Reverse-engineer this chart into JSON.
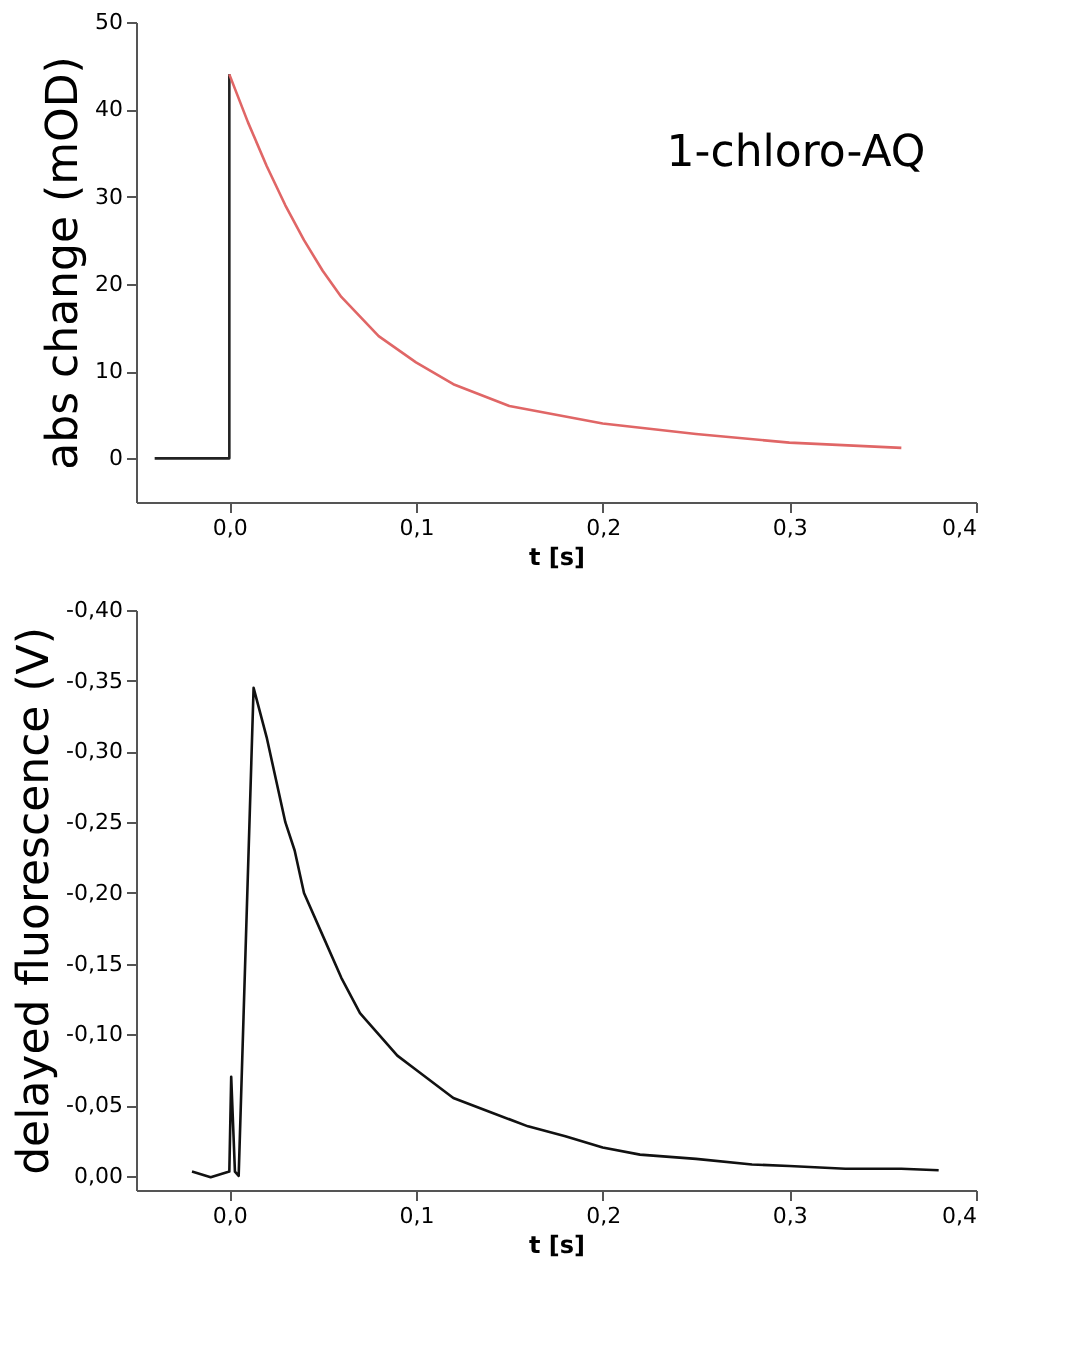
{
  "chart_data": [
    {
      "type": "line",
      "xlabel": "t [s]",
      "ylabel": "abs change (mOD)",
      "annotations": [
        "1-chloro-AQ"
      ],
      "xlim": [
        -0.05,
        0.4
      ],
      "xticks": [
        {
          "value": 0,
          "label": "0,0"
        },
        {
          "value": 0.1,
          "label": "0,1"
        },
        {
          "value": 0.2,
          "label": "0,2"
        },
        {
          "value": 0.3,
          "label": "0,3"
        },
        {
          "value": 0.4,
          "label": "0,4"
        }
      ],
      "ylim": [
        -5,
        50
      ],
      "yticks": [
        0,
        10,
        20,
        30,
        40,
        50
      ],
      "grid": false,
      "series": [
        {
          "color": "#222222",
          "x": [
            -0.04,
            -0.02,
            0,
            0
          ],
          "values": [
            0,
            0,
            0,
            44
          ]
        },
        {
          "color": "#e06666",
          "x": [
            0,
            0.01,
            0.02,
            0.03,
            0.04,
            0.05,
            0.06,
            0.08,
            0.1,
            0.12,
            0.15,
            0.2,
            0.25,
            0.3,
            0.36
          ],
          "values": [
            44,
            38.5,
            33.5,
            29,
            25,
            21.5,
            18.5,
            14,
            11,
            8.5,
            6,
            4,
            2.8,
            1.8,
            1.2
          ]
        }
      ]
    },
    {
      "type": "line",
      "xlabel": "t [s]",
      "ylabel": "delayed fluorescence (V)",
      "xlim": [
        -0.05,
        0.4
      ],
      "xticks": [
        {
          "value": 0,
          "label": "0,0"
        },
        {
          "value": 0.1,
          "label": "0,1"
        },
        {
          "value": 0.2,
          "label": "0,2"
        },
        {
          "value": 0.3,
          "label": "0,3"
        },
        {
          "value": 0.4,
          "label": "0,4"
        }
      ],
      "ylim": [
        0.01,
        -0.4
      ],
      "yticks": [
        {
          "value": 0,
          "label": "0,00"
        },
        {
          "value": -0.05,
          "label": "-0,05"
        },
        {
          "value": -0.1,
          "label": "-0,10"
        },
        {
          "value": -0.15,
          "label": "-0,15"
        },
        {
          "value": -0.2,
          "label": "-0,20"
        },
        {
          "value": -0.25,
          "label": "-0,25"
        },
        {
          "value": -0.3,
          "label": "-0,30"
        },
        {
          "value": -0.35,
          "label": "-0,35"
        },
        {
          "value": -0.4,
          "label": "-0,40"
        }
      ],
      "grid": false,
      "series": [
        {
          "color": "#111111",
          "x": [
            -0.02,
            -0.01,
            0,
            0.001,
            0.003,
            0.005,
            0.013,
            0.02,
            0.025,
            0.03,
            0.035,
            0.04,
            0.05,
            0.06,
            0.07,
            0.08,
            0.09,
            0.1,
            0.12,
            0.14,
            0.16,
            0.18,
            0.2,
            0.22,
            0.25,
            0.28,
            0.3,
            0.33,
            0.36,
            0.38
          ],
          "values": [
            -0.003,
            0.001,
            -0.003,
            -0.07,
            -0.003,
            0.0,
            -0.345,
            -0.31,
            -0.28,
            -0.25,
            -0.23,
            -0.2,
            -0.17,
            -0.14,
            -0.115,
            -0.1,
            -0.085,
            -0.075,
            -0.055,
            -0.045,
            -0.035,
            -0.028,
            -0.02,
            -0.015,
            -0.012,
            -0.008,
            -0.007,
            -0.005,
            -0.005,
            -0.004
          ]
        }
      ]
    }
  ]
}
